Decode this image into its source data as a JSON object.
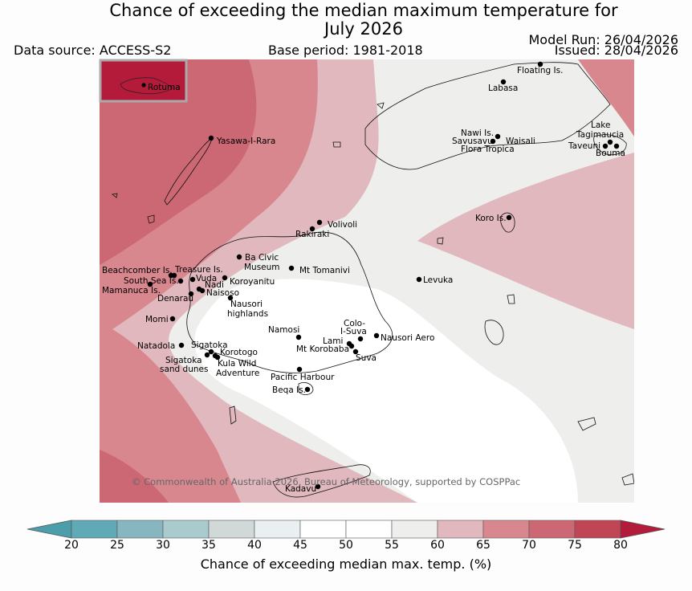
{
  "header": {
    "title_line1": "Chance of exceeding the median maximum temperature for",
    "title_line2": "July 2026",
    "data_source": "Data source: ACCESS-S2",
    "base_period": "Base period: 1981-2018",
    "model_run": "Model Run: 26/04/2026",
    "issued": "Issued: 28/04/2026"
  },
  "map": {
    "inset_label": "Rotuma",
    "copyright": "© Commonwealth of Australia 2026, Bureau of Meteorology, supported by COSPPac",
    "places": [
      {
        "name": "Floating Is."
      },
      {
        "name": "Labasa"
      },
      {
        "name": "Yasawa-I-Rara"
      },
      {
        "name": "Nawi Is."
      },
      {
        "name": "Savusavu"
      },
      {
        "name": "Waisali"
      },
      {
        "name": "Flora Tropica"
      },
      {
        "name": "Lake"
      },
      {
        "name": "Tagimaucia"
      },
      {
        "name": "Taveuni"
      },
      {
        "name": "Bouma"
      },
      {
        "name": "Koro Is."
      },
      {
        "name": "Volivoli"
      },
      {
        "name": "Rakiraki"
      },
      {
        "name": "Ba Civic"
      },
      {
        "name": "Museum"
      },
      {
        "name": "Mt Tomanivi"
      },
      {
        "name": "Beachcomber Is."
      },
      {
        "name": "Treasure Is."
      },
      {
        "name": "South Sea Is."
      },
      {
        "name": "Vuda"
      },
      {
        "name": "Koroyanitu"
      },
      {
        "name": "Nadi"
      },
      {
        "name": "Mamanuca Is."
      },
      {
        "name": "Naisoso"
      },
      {
        "name": "Denarau"
      },
      {
        "name": "Levuka"
      },
      {
        "name": "Nausori"
      },
      {
        "name": "highlands"
      },
      {
        "name": "Momi"
      },
      {
        "name": "Namosi"
      },
      {
        "name": "Colo-"
      },
      {
        "name": "I-Suva"
      },
      {
        "name": "Lami"
      },
      {
        "name": "Nausori Aero"
      },
      {
        "name": "Mt Korobaba"
      },
      {
        "name": "Natadola"
      },
      {
        "name": "Sigatoka"
      },
      {
        "name": "Korotogo"
      },
      {
        "name": "Sigatoka"
      },
      {
        "name": "sand dunes"
      },
      {
        "name": "Kula Wild"
      },
      {
        "name": "Adventure"
      },
      {
        "name": "Suva"
      },
      {
        "name": "Pacific Harbour"
      },
      {
        "name": "Beqa Is."
      },
      {
        "name": "Kadavu"
      }
    ]
  },
  "colorbar": {
    "ticks": [
      "20",
      "25",
      "30",
      "35",
      "40",
      "45",
      "50",
      "55",
      "60",
      "65",
      "70",
      "75",
      "80"
    ],
    "colors": [
      "#60a9b6",
      "#87b6c1",
      "#aacbce",
      "#d1d8d8",
      "#eaf0f2",
      "#ffffff",
      "#ffffff",
      "#eeeeec",
      "#e0b8bd",
      "#d9878f",
      "#cc6873",
      "#c04655"
    ],
    "under_color": "#4d9eab",
    "over_color": "#b41a3a",
    "label": "Chance of exceeding median max. temp. (%)"
  }
}
